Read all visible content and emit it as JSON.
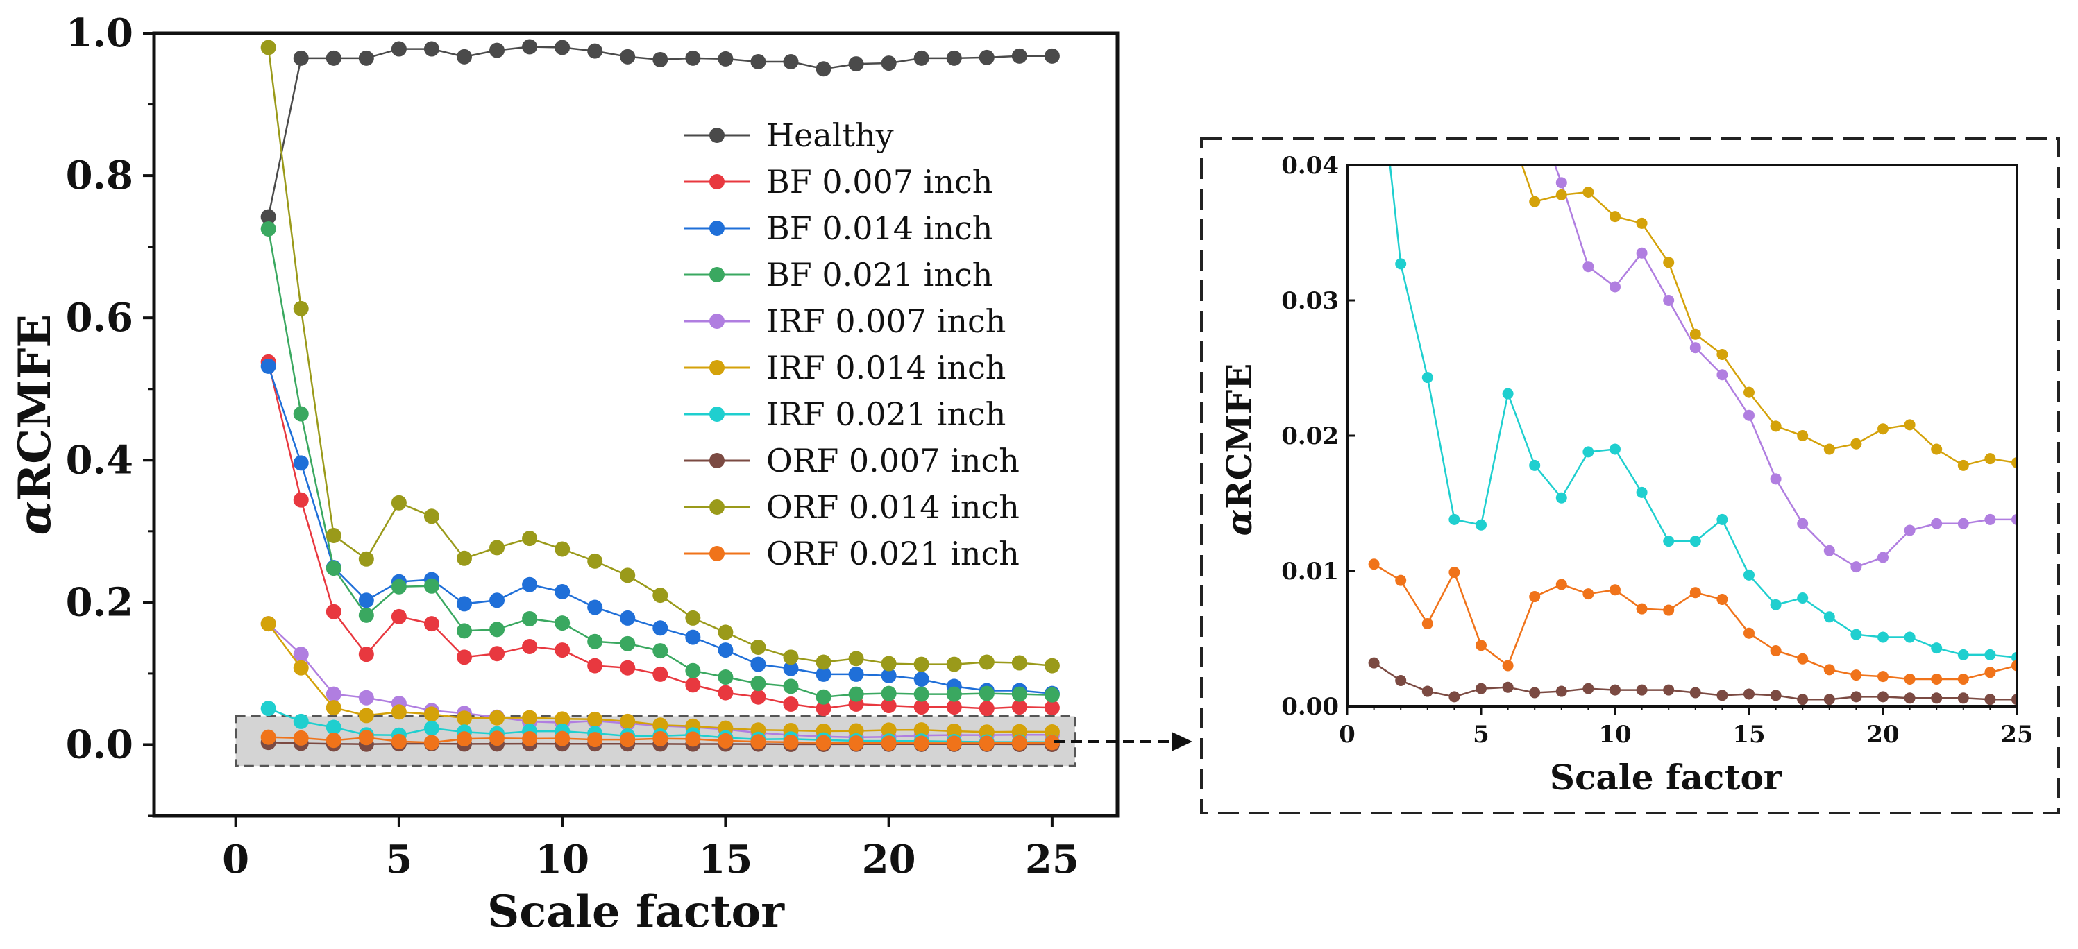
{
  "chart_data": [
    {
      "type": "line",
      "panel": "main",
      "xlabel": "Scale factor",
      "ylabel_italic_prefix": "α",
      "ylabel": "RCMFE",
      "xlim": [
        -2.5,
        27
      ],
      "ylim": [
        -0.1,
        1.0
      ],
      "xticks": [
        0,
        5,
        10,
        15,
        20,
        25
      ],
      "xtick_labels": [
        "0",
        "5",
        "10",
        "15",
        "20",
        "25"
      ],
      "yticks": [
        0.0,
        0.2,
        0.4,
        0.6,
        0.8,
        1.0
      ],
      "ytick_labels": [
        "0.0",
        "0.2",
        "0.4",
        "0.6",
        "0.8",
        "1.0"
      ],
      "legend_position": "upper-right",
      "zoom_region": {
        "x": [
          0,
          25.7
        ],
        "y": [
          -0.03,
          0.04
        ]
      },
      "x": [
        1,
        2,
        3,
        4,
        5,
        6,
        7,
        8,
        9,
        10,
        11,
        12,
        13,
        14,
        15,
        16,
        17,
        18,
        19,
        20,
        21,
        22,
        23,
        24,
        25
      ],
      "series": [
        {
          "name": "Healthy",
          "color": "#4a4a4a",
          "values": [
            0.742,
            0.965,
            0.965,
            0.965,
            0.978,
            0.978,
            0.967,
            0.976,
            0.981,
            0.98,
            0.975,
            0.967,
            0.963,
            0.965,
            0.964,
            0.96,
            0.96,
            0.95,
            0.957,
            0.958,
            0.965,
            0.965,
            0.966,
            0.968,
            0.968
          ]
        },
        {
          "name": "BF 0.007 inch",
          "color": "#e8383f",
          "values": [
            0.538,
            0.344,
            0.187,
            0.127,
            0.18,
            0.17,
            0.123,
            0.128,
            0.138,
            0.133,
            0.111,
            0.108,
            0.099,
            0.084,
            0.073,
            0.067,
            0.057,
            0.051,
            0.057,
            0.055,
            0.053,
            0.053,
            0.051,
            0.053,
            0.052
          ]
        },
        {
          "name": "BF 0.014 inch",
          "color": "#1f6fd8",
          "values": [
            0.532,
            0.396,
            0.249,
            0.203,
            0.229,
            0.232,
            0.198,
            0.203,
            0.225,
            0.215,
            0.193,
            0.178,
            0.164,
            0.151,
            0.133,
            0.113,
            0.107,
            0.099,
            0.099,
            0.097,
            0.092,
            0.082,
            0.076,
            0.076,
            0.072
          ]
        },
        {
          "name": "BF 0.021 inch",
          "color": "#3aa860",
          "values": [
            0.725,
            0.465,
            0.248,
            0.182,
            0.222,
            0.223,
            0.16,
            0.162,
            0.177,
            0.171,
            0.145,
            0.142,
            0.132,
            0.104,
            0.095,
            0.086,
            0.082,
            0.067,
            0.071,
            0.072,
            0.071,
            0.071,
            0.072,
            0.071,
            0.07
          ]
        },
        {
          "name": "IRF 0.007 inch",
          "color": "#b07ee0",
          "values": [
            0.17,
            0.127,
            0.071,
            0.066,
            0.058,
            0.048,
            0.044,
            0.0387,
            0.0325,
            0.031,
            0.0335,
            0.03,
            0.0265,
            0.0245,
            0.0215,
            0.0168,
            0.0135,
            0.0115,
            0.0103,
            0.011,
            0.013,
            0.0135,
            0.0135,
            0.0138,
            0.0138
          ]
        },
        {
          "name": "IRF 0.014 inch",
          "color": "#d4a20a",
          "values": [
            0.17,
            0.108,
            0.052,
            0.041,
            0.046,
            0.043,
            0.0373,
            0.0378,
            0.038,
            0.0362,
            0.0357,
            0.0328,
            0.0275,
            0.026,
            0.0232,
            0.0207,
            0.02,
            0.019,
            0.0194,
            0.0205,
            0.0208,
            0.019,
            0.0178,
            0.0183,
            0.018
          ]
        },
        {
          "name": "IRF 0.021 inch",
          "color": "#1fcfcf",
          "values": [
            0.051,
            0.0327,
            0.0243,
            0.0138,
            0.0134,
            0.0231,
            0.0178,
            0.0154,
            0.0188,
            0.019,
            0.0158,
            0.0122,
            0.0122,
            0.0138,
            0.0097,
            0.0075,
            0.008,
            0.0066,
            0.0053,
            0.0051,
            0.0051,
            0.0043,
            0.0038,
            0.0038,
            0.0036
          ]
        },
        {
          "name": "ORF 0.007 inch",
          "color": "#7b4a42",
          "values": [
            0.0032,
            0.0019,
            0.0011,
            0.0007,
            0.0013,
            0.0014,
            0.001,
            0.0011,
            0.0013,
            0.0012,
            0.0012,
            0.0012,
            0.001,
            0.0008,
            0.0009,
            0.0008,
            0.0005,
            0.0005,
            0.0007,
            0.0007,
            0.0006,
            0.0006,
            0.0006,
            0.0005,
            0.0005
          ]
        },
        {
          "name": "ORF 0.014 inch",
          "color": "#9a9a1a",
          "values": [
            0.98,
            0.613,
            0.294,
            0.261,
            0.34,
            0.321,
            0.262,
            0.277,
            0.29,
            0.275,
            0.258,
            0.238,
            0.21,
            0.178,
            0.158,
            0.137,
            0.123,
            0.116,
            0.121,
            0.114,
            0.113,
            0.113,
            0.116,
            0.115,
            0.111
          ]
        },
        {
          "name": "ORF 0.021 inch",
          "color": "#f0731a",
          "values": [
            0.0105,
            0.0093,
            0.0061,
            0.0099,
            0.0045,
            0.003,
            0.0081,
            0.009,
            0.0083,
            0.0086,
            0.0072,
            0.0071,
            0.0084,
            0.0079,
            0.0054,
            0.0041,
            0.0035,
            0.0027,
            0.0023,
            0.0022,
            0.002,
            0.002,
            0.002,
            0.0025,
            0.003
          ]
        }
      ]
    },
    {
      "type": "line",
      "panel": "inset",
      "xlabel": "Scale factor",
      "ylabel_italic_prefix": "α",
      "ylabel": "RCMFE",
      "xlim": [
        0,
        25
      ],
      "ylim": [
        0.0,
        0.04
      ],
      "xticks": [
        0,
        5,
        10,
        15,
        20,
        25
      ],
      "xtick_labels": [
        "0",
        "5",
        "10",
        "15",
        "20",
        "25"
      ],
      "yticks": [
        0.0,
        0.01,
        0.02,
        0.03,
        0.04
      ],
      "ytick_labels": [
        "0.00",
        "0.01",
        "0.02",
        "0.03",
        "0.04"
      ],
      "series_shown": [
        "IRF 0.007 inch",
        "IRF 0.014 inch",
        "IRF 0.021 inch",
        "ORF 0.007 inch",
        "ORF 0.021 inch"
      ]
    }
  ]
}
